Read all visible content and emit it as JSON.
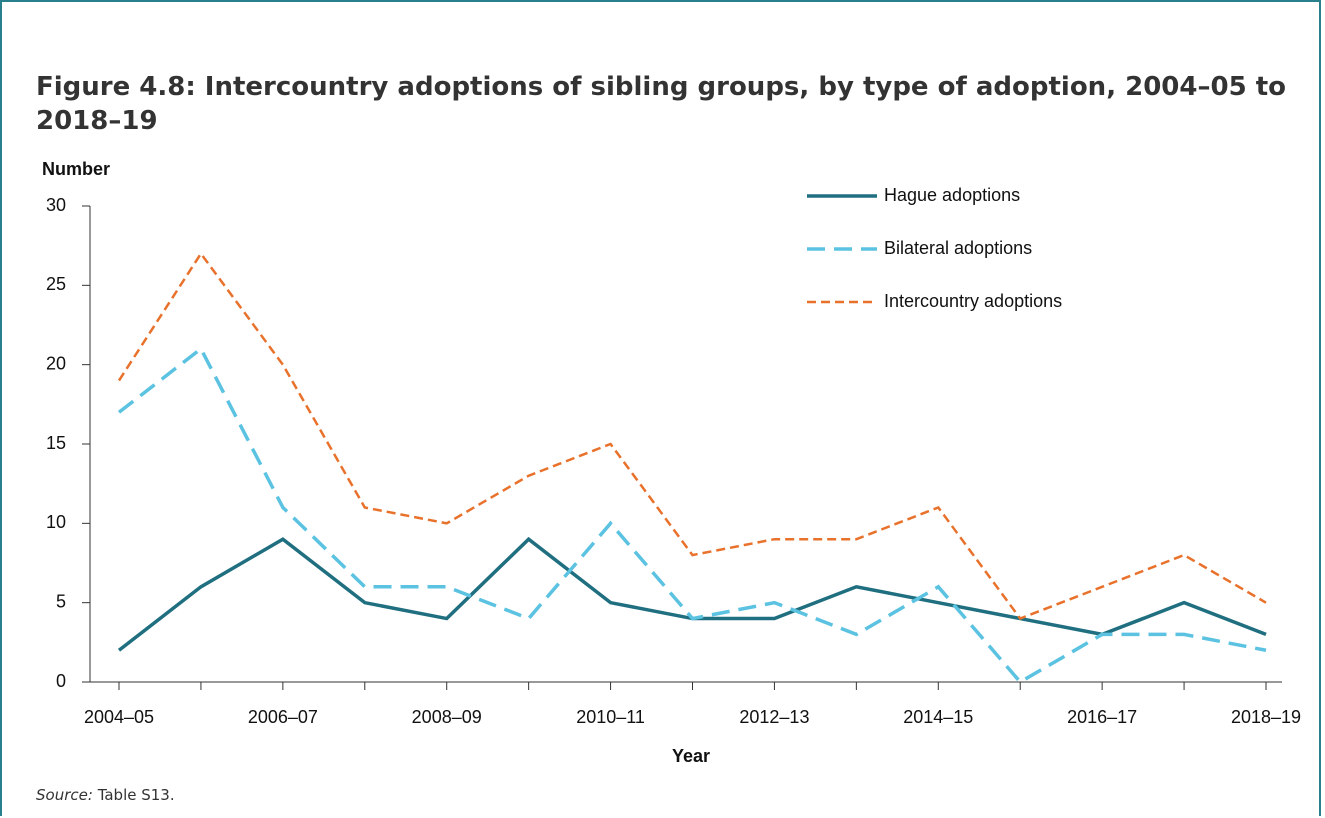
{
  "chart_data": {
    "type": "line",
    "title": "Figure 4.8: Intercountry adoptions of sibling groups, by type of adoption, 2004–05 to 2018–19",
    "y_label": "Number",
    "x_label": "Year",
    "source_label": "Source:",
    "source_text": "Table S13.",
    "categories": [
      "2004–05",
      null,
      "2006–07",
      null,
      "2008–09",
      null,
      "2010–11",
      null,
      "2012–13",
      null,
      "2014–15",
      null,
      "2016–17",
      null,
      "2018–19"
    ],
    "series": [
      {
        "name": "Hague adoptions",
        "color": "#1f6f80",
        "dash": "solid",
        "values": [
          2,
          6,
          9,
          5,
          4,
          9,
          5,
          4,
          4,
          6,
          5,
          4,
          3,
          5,
          3
        ]
      },
      {
        "name": "Bilateral adoptions",
        "color": "#5bc3e1",
        "dash": "long",
        "values": [
          17,
          21,
          11,
          6,
          6,
          4,
          10,
          4,
          5,
          3,
          6,
          0,
          3,
          3,
          2
        ]
      },
      {
        "name": "Intercountry adoptions",
        "color": "#e8712b",
        "dash": "short",
        "values": [
          19,
          27,
          20,
          11,
          10,
          13,
          15,
          8,
          9,
          9,
          11,
          4,
          6,
          8,
          5
        ]
      }
    ],
    "ylim": [
      0,
      30
    ],
    "yticks": [
      0,
      5,
      10,
      15,
      20,
      25,
      30
    ],
    "legend": "top-right"
  }
}
